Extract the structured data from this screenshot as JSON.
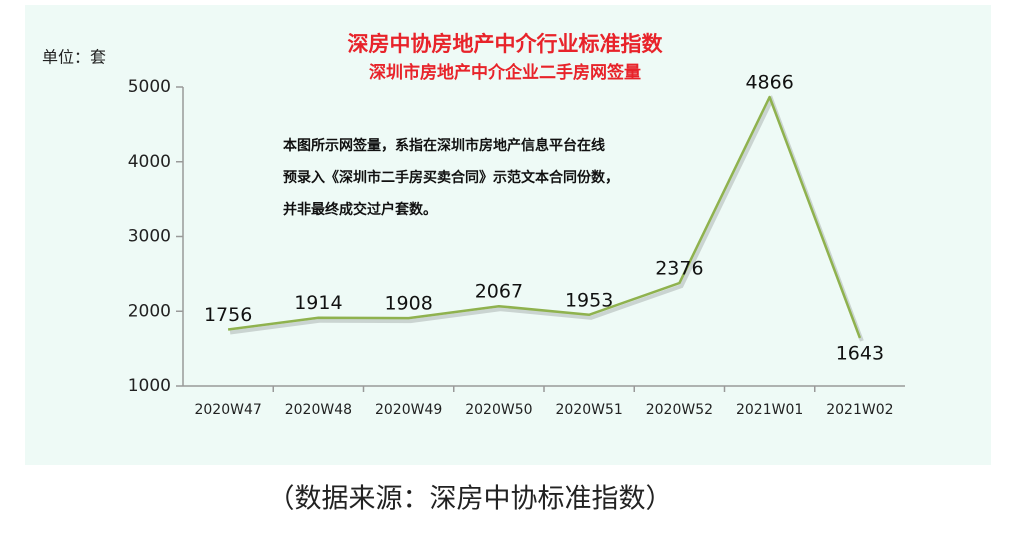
{
  "chart_data": {
    "type": "line",
    "title": "深房中协房地产中介行业标准指数",
    "subtitle": "深圳市房地产中介企业二手房网签量",
    "y_axis_label": "单位：套",
    "annotation": [
      "本图所示网签量，系指在深圳市房地产信息平台在线",
      "预录入《深圳市二手房买卖合同》示范文本合同份数，",
      "并非最终成交过户套数。"
    ],
    "categories": [
      "2020W47",
      "2020W48",
      "2020W49",
      "2020W50",
      "2020W51",
      "2020W52",
      "2021W01",
      "2021W02"
    ],
    "values": [
      1756,
      1914,
      1908,
      2067,
      1953,
      2376,
      4866,
      1643
    ],
    "color": "#8fb24e",
    "ylim": [
      1000,
      5000
    ],
    "yticks": [
      1000,
      2000,
      3000,
      4000,
      5000
    ],
    "grid": false,
    "caption": "（数据来源：深房中协标准指数）"
  }
}
